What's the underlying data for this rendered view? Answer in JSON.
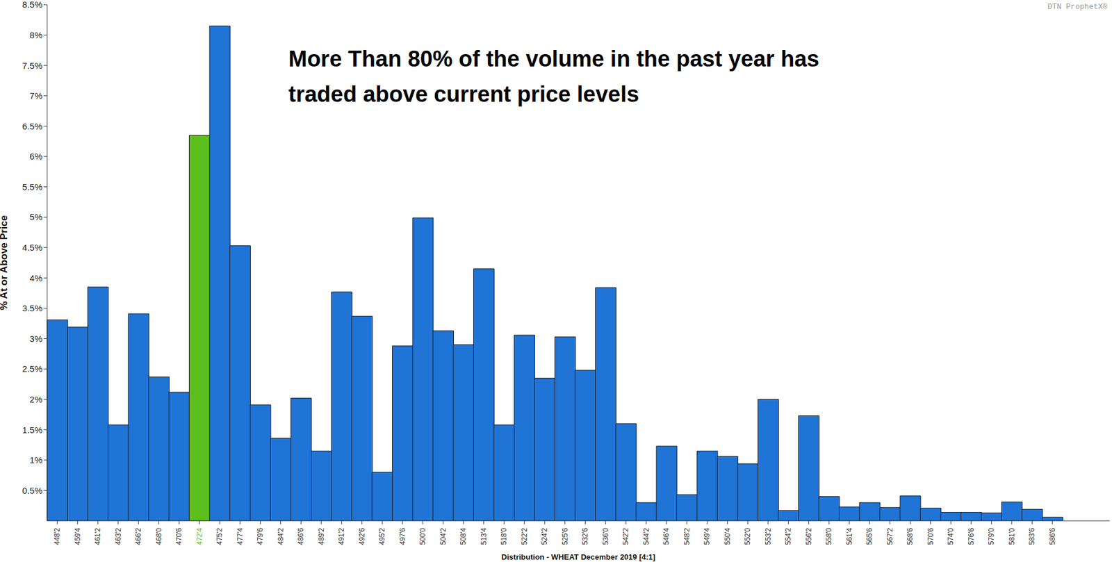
{
  "chart_data": {
    "type": "bar",
    "watermark": "DTN ProphetX®",
    "annotation": [
      "More Than 80% of the volume in the past year has",
      "traded above current price levels"
    ],
    "x_label": "Distribution - WHEAT December 2019  [4:1]",
    "y_label": "% At or Above Price",
    "categories": [
      "448'2",
      "459'4",
      "461'2",
      "463'2",
      "466'2",
      "468'0",
      "470'6",
      "472'4",
      "475'2",
      "477'4",
      "479'6",
      "484'2",
      "486'6",
      "489'2",
      "491'2",
      "492'6",
      "495'2",
      "497'6",
      "500'0",
      "504'2",
      "508'4",
      "513'4",
      "518'0",
      "522'2",
      "524'2",
      "525'6",
      "532'6",
      "536'0",
      "542'2",
      "544'2",
      "546'4",
      "548'2",
      "549'4",
      "550'4",
      "552'0",
      "553'2",
      "554'2",
      "556'2",
      "558'0",
      "561'4",
      "565'6",
      "567'2",
      "568'6",
      "570'6",
      "574'0",
      "576'6",
      "579'0",
      "581'0",
      "583'6",
      "586'6"
    ],
    "values": [
      3.31,
      3.19,
      3.85,
      1.58,
      3.41,
      2.37,
      2.12,
      6.35,
      8.15,
      4.53,
      1.91,
      1.36,
      2.02,
      1.15,
      3.77,
      3.37,
      0.8,
      2.88,
      4.99,
      3.13,
      2.9,
      4.15,
      1.58,
      3.06,
      2.35,
      3.03,
      2.48,
      3.84,
      1.6,
      0.3,
      1.23,
      0.43,
      1.15,
      1.06,
      0.94,
      2.0,
      0.17,
      1.73,
      0.4,
      0.23,
      0.3,
      0.22,
      0.41,
      0.21,
      0.14,
      0.14,
      0.13,
      0.31,
      0.19,
      0.06
    ],
    "color": "#1f74d6",
    "colors": [
      "#1f74d6",
      "#1f74d6",
      "#1f74d6",
      "#1f74d6",
      "#1f74d6",
      "#1f74d6",
      "#1f74d6",
      "#5cbf1e",
      "#1f74d6",
      "#1f74d6",
      "#1f74d6",
      "#1f74d6",
      "#1f74d6",
      "#1f74d6",
      "#1f74d6",
      "#1f74d6",
      "#1f74d6",
      "#1f74d6",
      "#1f74d6",
      "#1f74d6",
      "#1f74d6",
      "#1f74d6",
      "#1f74d6",
      "#1f74d6",
      "#1f74d6",
      "#1f74d6",
      "#1f74d6",
      "#1f74d6",
      "#1f74d6",
      "#1f74d6",
      "#1f74d6",
      "#1f74d6",
      "#1f74d6",
      "#1f74d6",
      "#1f74d6",
      "#1f74d6",
      "#1f74d6",
      "#1f74d6",
      "#1f74d6",
      "#1f74d6",
      "#1f74d6",
      "#1f74d6",
      "#1f74d6",
      "#1f74d6",
      "#1f74d6",
      "#1f74d6",
      "#1f74d6",
      "#1f74d6",
      "#1f74d6",
      "#1f74d6"
    ],
    "ylim": [
      0,
      8.5
    ],
    "yticks": [
      {
        "value": 0.5,
        "label": "0.5%"
      },
      {
        "value": 1,
        "label": "1%"
      },
      {
        "value": 1.5,
        "label": "1.5%"
      },
      {
        "value": 2,
        "label": "2%"
      },
      {
        "value": 2.5,
        "label": "2.5%"
      },
      {
        "value": 3,
        "label": "3%"
      },
      {
        "value": 3.5,
        "label": "3.5%"
      },
      {
        "value": 4,
        "label": "4%"
      },
      {
        "value": 4.5,
        "label": "4.5%"
      },
      {
        "value": 5,
        "label": "5%"
      },
      {
        "value": 5.5,
        "label": "5.5%"
      },
      {
        "value": 6,
        "label": "6%"
      },
      {
        "value": 6.5,
        "label": "6.5%"
      },
      {
        "value": 7,
        "label": "7%"
      },
      {
        "value": 7.5,
        "label": "7.5%"
      },
      {
        "value": 8,
        "label": "8%"
      },
      {
        "value": 8.5,
        "label": "8.5%"
      }
    ],
    "grid": false
  }
}
